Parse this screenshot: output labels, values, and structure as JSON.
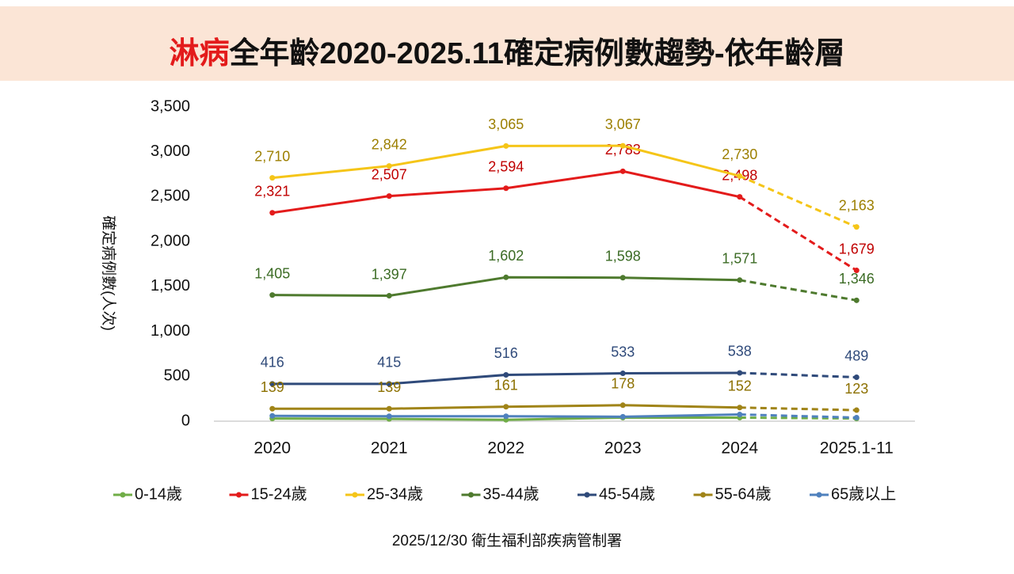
{
  "chart_data": {
    "type": "line",
    "title_highlight": "淋病",
    "title": "全年齡2020-2025.11確定病例數趨勢-依年齡層",
    "y_label": "確定病例數(人次)",
    "source": "2025/12/30 衛生福利部疾病管制署",
    "categories": [
      "2020",
      "2021",
      "2022",
      "2023",
      "2024",
      "2025.1-11"
    ],
    "last_segment_style": "dashed",
    "ylim": [
      0,
      3500
    ],
    "yticks": [
      0,
      500,
      {
        "value": 1000,
        "label": "1,000"
      },
      {
        "value": 1500,
        "label": "1,500"
      },
      {
        "value": 2000,
        "label": "2,000"
      },
      {
        "value": 2500,
        "label": "2,500"
      },
      {
        "value": 3000,
        "label": "3,000"
      },
      {
        "value": 3500,
        "label": "3,500"
      }
    ],
    "legend": "bottom",
    "series": [
      {
        "name": "0-14歲",
        "color": "#70ad47",
        "values": [
          30,
          25,
          15,
          40,
          40,
          30
        ]
      },
      {
        "name": "15-24歲",
        "color": "#e31b1b",
        "label_color": "#c00000",
        "values": [
          2321,
          2507,
          2594,
          2783,
          2498,
          1679
        ],
        "value_labels": [
          "2,321",
          "2,507",
          "2,594",
          "2,783",
          "2,498",
          "1,679"
        ]
      },
      {
        "name": "25-34歲",
        "color": "#f5c518",
        "label_color": "#9c7f00",
        "values": [
          2710,
          2842,
          3065,
          3067,
          2730,
          2163
        ],
        "value_labels": [
          "2,710",
          "2,842",
          "3,065",
          "3,067",
          "2,730",
          "2,163"
        ]
      },
      {
        "name": "35-44歲",
        "color": "#4e7a2e",
        "label_color": "#3b6b24",
        "values": [
          1405,
          1397,
          1602,
          1598,
          1571,
          1346
        ],
        "value_labels": [
          "1,405",
          "1,397",
          "1,602",
          "1,598",
          "1,571",
          "1,346"
        ]
      },
      {
        "name": "45-54歲",
        "color": "#2f4a7a",
        "label_color": "#2f4a7a",
        "values": [
          416,
          415,
          516,
          533,
          538,
          489
        ]
      },
      {
        "name": "55-64歲",
        "color": "#a08418",
        "label_color": "#8c7000",
        "values": [
          139,
          139,
          161,
          178,
          152,
          123
        ]
      },
      {
        "name": "65歲以上",
        "color": "#4f81bd",
        "values": [
          60,
          55,
          55,
          50,
          75,
          40
        ]
      }
    ]
  }
}
